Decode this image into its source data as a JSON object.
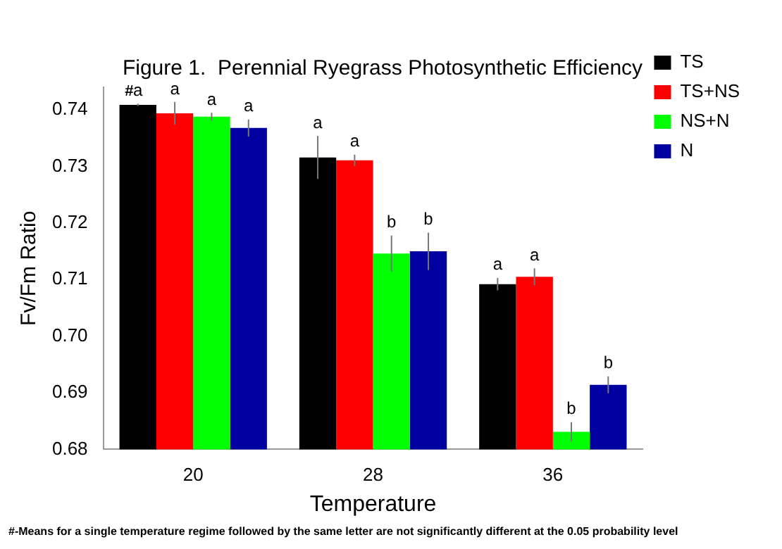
{
  "chart_data": {
    "type": "bar",
    "title": "Figure 1.  Perennial Ryegrass Photosynthetic Efficiency",
    "xlabel": "Temperature",
    "ylabel": "Fv/Fm Ratio",
    "categories": [
      "20",
      "28",
      "36"
    ],
    "series": [
      {
        "name": "TS",
        "color": "#000000",
        "values": [
          0.7409,
          0.7316,
          0.7092
        ],
        "errors": [
          0.0002,
          0.0038,
          0.0011
        ]
      },
      {
        "name": "TS+NS",
        "color": "#ff0000",
        "values": [
          0.7394,
          0.7311,
          0.7105
        ],
        "errors": [
          0.002,
          0.001,
          0.0015
        ]
      },
      {
        "name": "NS+N",
        "color": "#00ff00",
        "values": [
          0.7388,
          0.7146,
          0.6831
        ],
        "errors": [
          0.0007,
          0.0032,
          0.0017
        ]
      },
      {
        "name": "N",
        "color": "#0000a0",
        "values": [
          0.7368,
          0.715,
          0.6914
        ],
        "errors": [
          0.0015,
          0.0033,
          0.0015
        ]
      }
    ],
    "ylim": [
      0.68,
      0.744
    ],
    "yticks": [
      {
        "value": 0.68,
        "label": "0.68"
      },
      {
        "value": 0.69,
        "label": "0.69"
      },
      {
        "value": 0.7,
        "label": "0.70"
      },
      {
        "value": 0.71,
        "label": "0.71"
      },
      {
        "value": 0.72,
        "label": "0.72"
      },
      {
        "value": 0.73,
        "label": "0.73"
      },
      {
        "value": 0.74,
        "label": "0.74"
      }
    ],
    "grid": false,
    "legend": "top right",
    "annotations": [
      "a",
      "a",
      "a",
      "a",
      "a",
      "a",
      "b",
      "b",
      "a",
      "a",
      "b",
      "b",
      "#",
      "#-Means for a single temperature regime followed by the same letter are not significantly different at the 0.05 probability level"
    ]
  }
}
